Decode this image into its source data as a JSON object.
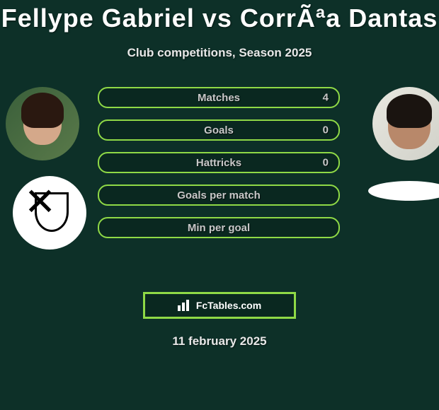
{
  "title": "Fellype Gabriel vs CorrÃªa Dantas",
  "subtitle": "Club competitions, Season 2025",
  "stats": [
    {
      "label": "Matches",
      "value": "4"
    },
    {
      "label": "Goals",
      "value": "0"
    },
    {
      "label": "Hattricks",
      "value": "0"
    },
    {
      "label": "Goals per match",
      "value": ""
    },
    {
      "label": "Min per goal",
      "value": ""
    }
  ],
  "branding": "FcTables.com",
  "date": "11 february 2025",
  "colors": {
    "background": "#0d3028",
    "accent": "#8fd946",
    "text_primary": "#ffffff",
    "text_secondary": "#c8c8c8"
  }
}
